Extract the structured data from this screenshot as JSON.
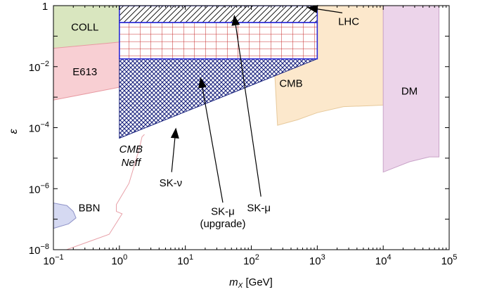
{
  "chart_data": {
    "type": "area",
    "title": "",
    "xlabel_main": "m",
    "xlabel_sub": "X",
    "xlabel_unit": " [GeV]",
    "ylabel": "ε",
    "xscale": "log",
    "yscale": "log",
    "xlim": [
      0.1,
      100000
    ],
    "ylim": [
      1e-08,
      1
    ],
    "x_ticks": [
      {
        "v": 0.1,
        "base": "10",
        "exp": "−1"
      },
      {
        "v": 1,
        "base": "10",
        "exp": "0"
      },
      {
        "v": 10,
        "base": "10",
        "exp": "1"
      },
      {
        "v": 100,
        "base": "10",
        "exp": "2"
      },
      {
        "v": 1000,
        "base": "10",
        "exp": "3"
      },
      {
        "v": 10000,
        "base": "10",
        "exp": "4"
      },
      {
        "v": 100000,
        "base": "10",
        "exp": "5"
      }
    ],
    "y_ticks": [
      {
        "v": 1,
        "base": "1",
        "exp": ""
      },
      {
        "v": 0.01,
        "base": "10",
        "exp": "−2"
      },
      {
        "v": 0.0001,
        "base": "10",
        "exp": "−4"
      },
      {
        "v": 1e-06,
        "base": "10",
        "exp": "−6"
      },
      {
        "v": 1e-08,
        "base": "10",
        "exp": "−8"
      }
    ],
    "regions": [
      {
        "name": "COLL",
        "fill": "#d9e6bf",
        "stroke": "#b9c990",
        "points": [
          [
            0.1,
            1
          ],
          [
            2.1,
            1
          ],
          [
            2.1,
            0.21
          ],
          [
            1.5,
            0.068
          ],
          [
            0.55,
            0.038
          ],
          [
            0.1,
            0.038
          ]
        ]
      },
      {
        "name": "E613",
        "fill": "#f8cfd3",
        "stroke": "#e89aa2",
        "points": [
          [
            0.1,
            0.04
          ],
          [
            1.6,
            0.07
          ],
          [
            1.6,
            0.0055
          ],
          [
            1.1,
            0.0022
          ],
          [
            0.1,
            0.0008
          ]
        ]
      },
      {
        "name": "CMB",
        "fill": "#fce8cc",
        "stroke": "#e7c99b",
        "points": [
          [
            200,
            1
          ],
          [
            10000,
            1
          ],
          [
            10000,
            0.00055
          ],
          [
            6000,
            0.00052
          ],
          [
            2500,
            0.00049
          ],
          [
            1000,
            0.00031
          ],
          [
            500,
            0.00018
          ],
          [
            250,
            0.00012
          ]
        ]
      },
      {
        "name": "DM",
        "fill": "#ecd4ea",
        "stroke": "#c9a3c8",
        "points": [
          [
            10000,
            1
          ],
          [
            70000,
            1
          ],
          [
            70000,
            1.1e-05
          ],
          [
            50000,
            1.1e-05
          ],
          [
            25000,
            7.6e-06
          ],
          [
            10000,
            3.5e-06
          ]
        ]
      },
      {
        "name": "BBN",
        "fill": "#d5d9f2",
        "stroke": "#8f93c8",
        "points": [
          [
            0.1,
            3.4e-07
          ],
          [
            0.16,
            2.8e-07
          ],
          [
            0.2,
            1.8e-07
          ],
          [
            0.22,
            1.1e-07
          ],
          [
            0.17,
            7e-08
          ],
          [
            0.1,
            5e-08
          ]
        ]
      },
      {
        "name": "LHC",
        "fill": "#fbe6e6",
        "stroke": "#e0b9b9",
        "points": [
          [
            220,
            1
          ],
          [
            1000,
            1
          ],
          [
            1000,
            0.5
          ],
          [
            220,
            0.5
          ]
        ]
      },
      {
        "name": "inner-green",
        "fill": "#e4f1d6",
        "stroke": "#c2d6a8",
        "points": [
          [
            1,
            0.35
          ],
          [
            2.2,
            0.35
          ],
          [
            2.2,
            0.25
          ],
          [
            1,
            0.25
          ]
        ]
      }
    ],
    "cmb_neff_curve": [
      [
        0.1,
        7e-09
      ],
      [
        0.7,
        3.2e-08
      ],
      [
        1.1,
        1.5e-07
      ],
      [
        0.9,
        1.8e-07
      ],
      [
        0.9,
        3e-07
      ],
      [
        1.4,
        1.5e-06
      ],
      [
        2,
        2e-05
      ],
      [
        2.2,
        5e-05
      ],
      [
        2.4,
        6e-05
      ]
    ],
    "sk_nu": {
      "name": "SK-ν",
      "points": [
        [
          1,
          0.018
        ],
        [
          1000,
          0.018
        ],
        [
          1,
          4.5e-05
        ]
      ]
    },
    "sk_mu_upgrade": {
      "name": "SK-μ (upgrade)",
      "x": [
        1,
        1000
      ],
      "y": [
        0.018,
        0.28
      ]
    },
    "sk_mu": {
      "name": "SK-μ",
      "x": [
        1,
        1000
      ],
      "y": [
        0.28,
        1
      ]
    },
    "labels": [
      {
        "text": "COLL",
        "x": 0.3,
        "y": 0.15
      },
      {
        "text": "E613",
        "x": 0.3,
        "y": 0.0052
      },
      {
        "text": "CMB",
        "x": 400,
        "y": 0.0022
      },
      {
        "text": "DM",
        "x": 25000,
        "y": 0.0012
      },
      {
        "text": "LHC",
        "x": 3000,
        "y": 0.23
      },
      {
        "text": "BBN",
        "x": 0.35,
        "y": 1.8e-07
      },
      {
        "text": "SK-ν",
        "x": 6,
        "y": 1.2e-06
      },
      {
        "text": "SK-μ",
        "x": 130,
        "y": 1.8e-07
      },
      {
        "text": "SK-μ",
        "x": 37,
        "y": 1.4e-07
      },
      {
        "text": "(upgrade)",
        "x": 37,
        "y": 5.5e-08
      }
    ],
    "cmb_neff_label": [
      "CMB",
      "Neff"
    ]
  }
}
